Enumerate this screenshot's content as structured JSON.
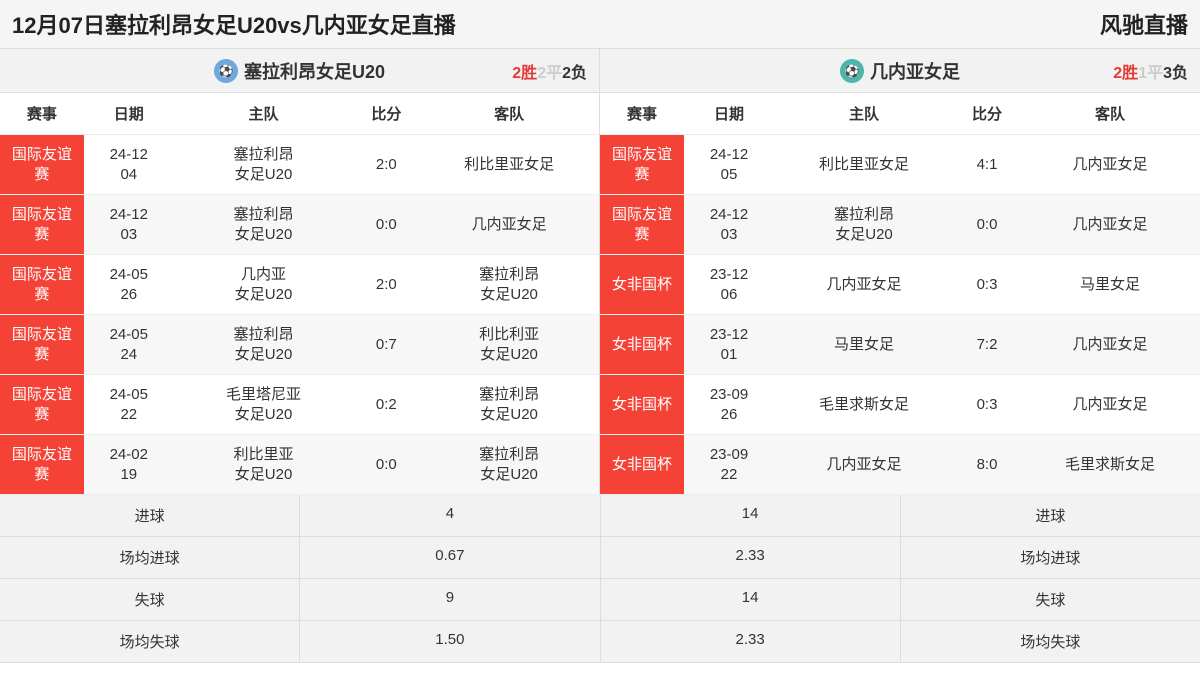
{
  "header": {
    "title": "12月07日塞拉利昂女足U20vs几内亚女足直播",
    "site": "风驰直播"
  },
  "columns": {
    "event": "赛事",
    "date": "日期",
    "home": "主队",
    "score": "比分",
    "away": "客队"
  },
  "stats_labels": {
    "goals": "进球",
    "avg_goals": "场均进球",
    "conceded": "失球",
    "avg_conceded": "场均失球"
  },
  "left": {
    "team_name": "塞拉利昂女足U20",
    "wdl": {
      "w": "2胜",
      "d": "2平",
      "l": "2负"
    },
    "rows": [
      {
        "comp": "国际友谊赛",
        "date": "24-12-04",
        "home": "塞拉利昂女足U20",
        "score": "2:0",
        "away": "利比里亚女足"
      },
      {
        "comp": "国际友谊赛",
        "date": "24-12-03",
        "home": "塞拉利昂女足U20",
        "score": "0:0",
        "away": "几内亚女足"
      },
      {
        "comp": "国际友谊赛",
        "date": "24-05-26",
        "home": "几内亚女足U20",
        "score": "2:0",
        "away": "塞拉利昂女足U20"
      },
      {
        "comp": "国际友谊赛",
        "date": "24-05-24",
        "home": "塞拉利昂女足U20",
        "score": "0:7",
        "away": "利比利亚女足U20"
      },
      {
        "comp": "国际友谊赛",
        "date": "24-05-22",
        "home": "毛里塔尼亚女足U20",
        "score": "0:2",
        "away": "塞拉利昂女足U20"
      },
      {
        "comp": "国际友谊赛",
        "date": "24-02-19",
        "home": "利比里亚女足U20",
        "score": "0:0",
        "away": "塞拉利昂女足U20"
      }
    ],
    "stats": {
      "goals": "4",
      "avg_goals": "0.67",
      "conceded": "9",
      "avg_conceded": "1.50"
    }
  },
  "right": {
    "team_name": "几内亚女足",
    "wdl": {
      "w": "2胜",
      "d": "1平",
      "l": "3负"
    },
    "rows": [
      {
        "comp": "国际友谊赛",
        "date": "24-12-05",
        "home": "利比里亚女足",
        "score": "4:1",
        "away": "几内亚女足"
      },
      {
        "comp": "国际友谊赛",
        "date": "24-12-03",
        "home": "塞拉利昂女足U20",
        "score": "0:0",
        "away": "几内亚女足"
      },
      {
        "comp": "女非国杯",
        "date": "23-12-06",
        "home": "几内亚女足",
        "score": "0:3",
        "away": "马里女足"
      },
      {
        "comp": "女非国杯",
        "date": "23-12-01",
        "home": "马里女足",
        "score": "7:2",
        "away": "几内亚女足"
      },
      {
        "comp": "女非国杯",
        "date": "23-09-26",
        "home": "毛里求斯女足",
        "score": "0:3",
        "away": "几内亚女足"
      },
      {
        "comp": "女非国杯",
        "date": "23-09-22",
        "home": "几内亚女足",
        "score": "8:0",
        "away": "毛里求斯女足"
      }
    ],
    "stats": {
      "goals": "14",
      "avg_goals": "2.33",
      "conceded": "14",
      "avg_conceded": "2.33"
    }
  },
  "colors": {
    "comp_bg": "#f44336",
    "win": "#e53935",
    "draw": "#cccccc",
    "header_bg": "#f2f2f2"
  }
}
